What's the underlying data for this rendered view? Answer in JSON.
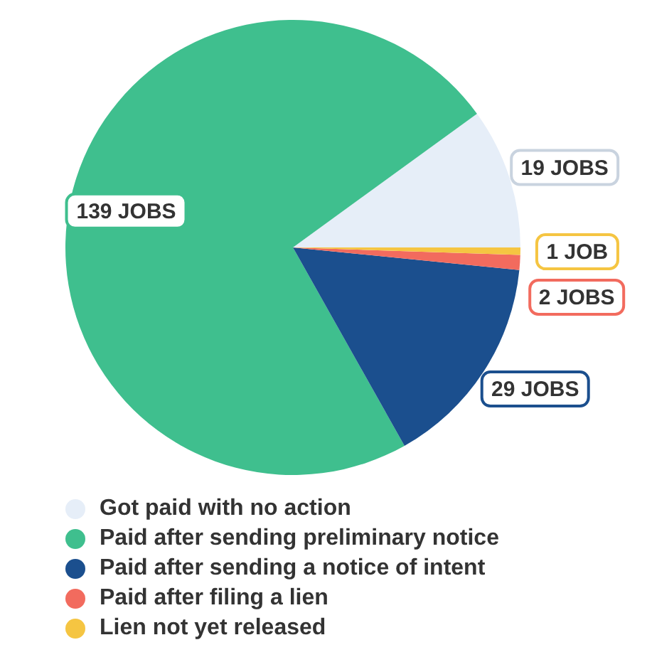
{
  "chart_data": {
    "type": "pie",
    "categories": [
      "Got paid with no action",
      "Paid after sending preliminary notice",
      "Paid after sending a notice of intent",
      "Paid after filing a lien",
      "Lien not yet released"
    ],
    "values": [
      19,
      139,
      29,
      2,
      1
    ],
    "colors": [
      "#e6eef8",
      "#3fbf8e",
      "#1b4f8e",
      "#f26b5e",
      "#f5c542"
    ],
    "value_labels": [
      "19 JOBS",
      "139 JOBS",
      "29 JOBS",
      "2 JOBS",
      "1 JOB"
    ],
    "legend": "bottom"
  }
}
